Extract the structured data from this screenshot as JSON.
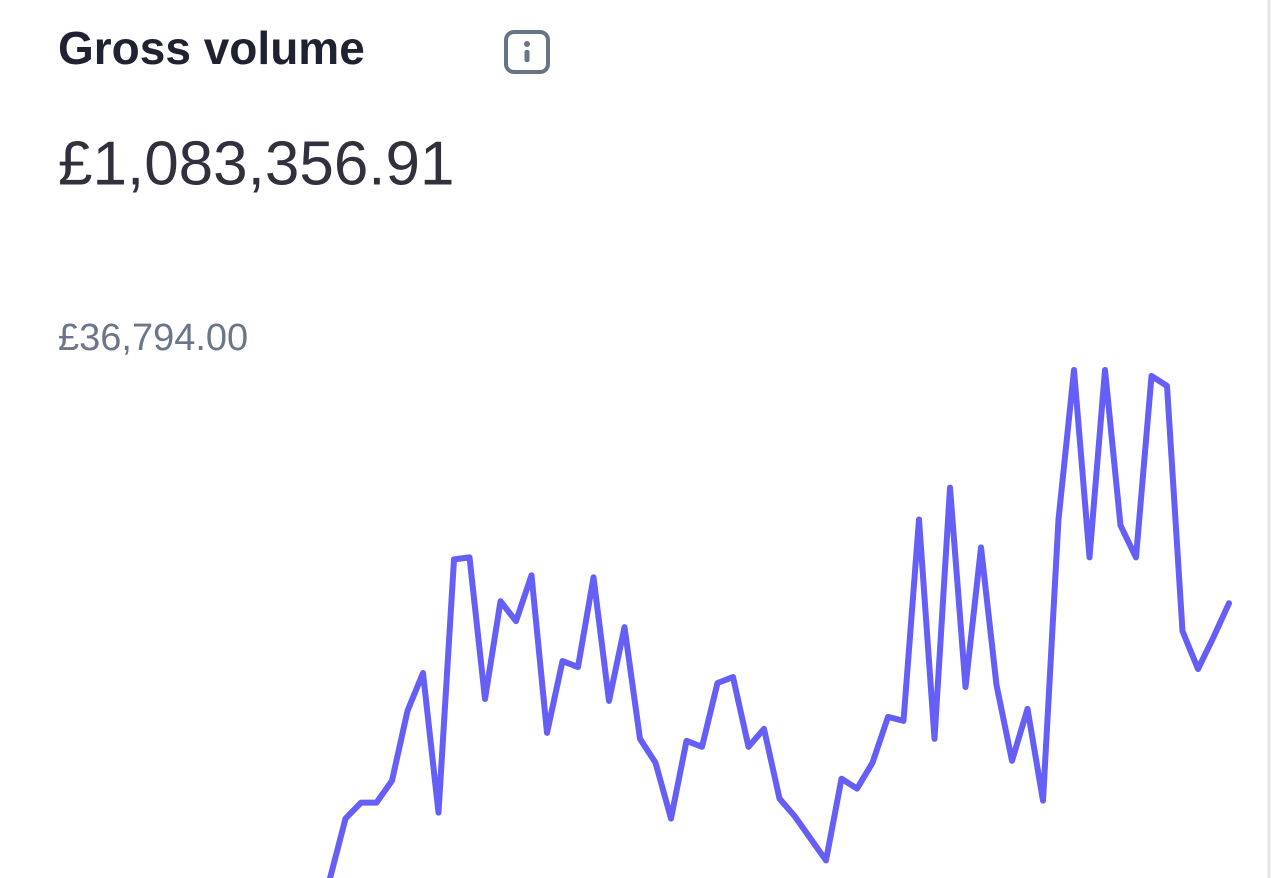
{
  "header": {
    "title": "Gross volume",
    "total": "£1,083,356.91"
  },
  "chart_data": {
    "type": "line",
    "color": "#655ef7",
    "grid": false,
    "ylim": [
      0,
      36794
    ],
    "yticks": [
      {
        "value": 36794,
        "label": "£36,794.00"
      }
    ],
    "values": [
      7103,
      10596,
      11528,
      11528,
      12808,
      16884,
      19096,
      10945,
      25733,
      25850,
      17582,
      23288,
      22124,
      24802,
      15603,
      19795,
      19445,
      24685,
      17466,
      21774,
      15254,
      13856,
      10596,
      15137,
      14788,
      18514,
      18863,
      14788,
      15836,
      11760,
      10712,
      9432,
      8151,
      12925,
      12343,
      13856,
      16534,
      16302,
      28062,
      15254,
      29925,
      18281,
      26432,
      18398,
      13973,
      17000,
      11644,
      28062,
      36794,
      25850,
      36794,
      27713,
      25850,
      36446,
      35864,
      21541,
      19329,
      21192,
      23172
    ]
  }
}
